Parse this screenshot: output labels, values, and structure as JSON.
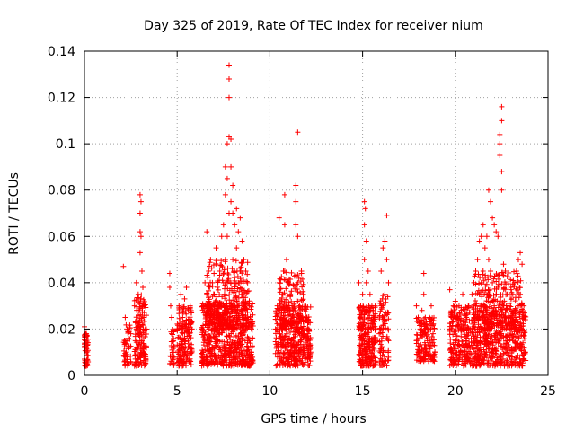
{
  "chart_data": {
    "type": "scatter",
    "title": "Day 325 of 2019, Rate Of TEC Index for receiver nium",
    "xlabel": "GPS time / hours",
    "ylabel": "ROTI / TECUs",
    "xlim": [
      0,
      25
    ],
    "ylim": [
      0,
      0.14
    ],
    "xticks": [
      0,
      5,
      10,
      15,
      20,
      25
    ],
    "yticks": [
      0,
      0.02,
      0.04,
      0.06,
      0.08,
      0.1,
      0.12,
      0.14
    ],
    "xtick_labels": [
      "0",
      "5",
      "10",
      "15",
      "20",
      "25"
    ],
    "ytick_labels": [
      "0",
      "0.02",
      "0.04",
      "0.06",
      "0.08",
      "0.1",
      "0.12",
      "0.14"
    ],
    "grid": true,
    "marker": "plus",
    "color": "#ff0000",
    "series": [
      {
        "name": "ROTI",
        "points": [
          [
            0.0,
            0.007
          ],
          [
            0.0,
            0.012
          ],
          [
            0.05,
            0.015
          ],
          [
            0.1,
            0.01
          ],
          [
            0.1,
            0.018
          ],
          [
            0.15,
            0.005
          ],
          [
            0.15,
            0.013
          ],
          [
            0.0,
            0.021
          ],
          [
            2.1,
            0.047
          ],
          [
            2.2,
            0.025
          ],
          [
            2.2,
            0.015
          ],
          [
            2.3,
            0.008
          ],
          [
            2.3,
            0.02
          ],
          [
            2.4,
            0.012
          ],
          [
            2.4,
            0.005
          ],
          [
            2.5,
            0.018
          ],
          [
            2.25,
            0.01
          ],
          [
            2.7,
            0.03
          ],
          [
            2.8,
            0.04
          ],
          [
            2.8,
            0.02
          ],
          [
            2.9,
            0.035
          ],
          [
            2.9,
            0.012
          ],
          [
            3.0,
            0.078
          ],
          [
            3.0,
            0.07
          ],
          [
            3.0,
            0.062
          ],
          [
            3.0,
            0.053
          ],
          [
            3.1,
            0.045
          ],
          [
            3.1,
            0.03
          ],
          [
            3.1,
            0.015
          ],
          [
            3.2,
            0.025
          ],
          [
            3.2,
            0.01
          ],
          [
            3.3,
            0.02
          ],
          [
            3.3,
            0.008
          ],
          [
            2.75,
            0.015
          ],
          [
            3.05,
            0.075
          ],
          [
            3.05,
            0.06
          ],
          [
            2.95,
            0.028
          ],
          [
            3.15,
            0.038
          ],
          [
            4.6,
            0.044
          ],
          [
            4.6,
            0.038
          ],
          [
            4.7,
            0.025
          ],
          [
            4.7,
            0.018
          ],
          [
            4.8,
            0.01
          ],
          [
            4.8,
            0.015
          ],
          [
            4.65,
            0.03
          ],
          [
            5.0,
            0.02
          ],
          [
            5.1,
            0.03
          ],
          [
            5.1,
            0.012
          ],
          [
            5.2,
            0.035
          ],
          [
            5.2,
            0.008
          ],
          [
            5.3,
            0.025
          ],
          [
            5.3,
            0.018
          ],
          [
            5.4,
            0.033
          ],
          [
            5.4,
            0.015
          ],
          [
            5.5,
            0.038
          ],
          [
            5.5,
            0.022
          ],
          [
            5.6,
            0.028
          ],
          [
            5.6,
            0.012
          ],
          [
            5.7,
            0.03
          ],
          [
            5.7,
            0.01
          ],
          [
            5.8,
            0.02
          ],
          [
            5.25,
            0.006
          ],
          [
            6.3,
            0.02
          ],
          [
            6.4,
            0.03
          ],
          [
            6.5,
            0.04
          ],
          [
            6.5,
            0.015
          ],
          [
            6.6,
            0.062
          ],
          [
            6.6,
            0.035
          ],
          [
            6.7,
            0.045
          ],
          [
            6.7,
            0.02
          ],
          [
            6.8,
            0.05
          ],
          [
            6.8,
            0.03
          ],
          [
            6.9,
            0.04
          ],
          [
            6.9,
            0.012
          ],
          [
            7.0,
            0.035
          ],
          [
            7.0,
            0.02
          ],
          [
            7.1,
            0.055
          ],
          [
            7.1,
            0.025
          ],
          [
            7.2,
            0.03
          ],
          [
            7.2,
            0.015
          ],
          [
            7.3,
            0.045
          ],
          [
            7.3,
            0.022
          ],
          [
            7.4,
            0.06
          ],
          [
            7.4,
            0.03
          ],
          [
            7.5,
            0.065
          ],
          [
            7.5,
            0.04
          ],
          [
            7.6,
            0.09
          ],
          [
            7.6,
            0.078
          ],
          [
            7.6,
            0.05
          ],
          [
            7.7,
            0.1
          ],
          [
            7.7,
            0.085
          ],
          [
            7.7,
            0.06
          ],
          [
            7.8,
            0.134
          ],
          [
            7.8,
            0.128
          ],
          [
            7.8,
            0.12
          ],
          [
            7.8,
            0.103
          ],
          [
            7.8,
            0.07
          ],
          [
            7.9,
            0.102
          ],
          [
            7.9,
            0.09
          ],
          [
            7.9,
            0.075
          ],
          [
            7.9,
            0.04
          ],
          [
            8.0,
            0.082
          ],
          [
            8.0,
            0.07
          ],
          [
            8.0,
            0.05
          ],
          [
            8.1,
            0.065
          ],
          [
            8.1,
            0.045
          ],
          [
            8.2,
            0.072
          ],
          [
            8.2,
            0.055
          ],
          [
            8.3,
            0.062
          ],
          [
            8.3,
            0.04
          ],
          [
            8.4,
            0.068
          ],
          [
            8.4,
            0.045
          ],
          [
            8.5,
            0.058
          ],
          [
            8.5,
            0.035
          ],
          [
            8.6,
            0.05
          ],
          [
            8.6,
            0.03
          ],
          [
            8.7,
            0.045
          ],
          [
            8.7,
            0.02
          ],
          [
            8.8,
            0.04
          ],
          [
            8.8,
            0.025
          ],
          [
            8.9,
            0.03
          ],
          [
            8.9,
            0.015
          ],
          [
            9.0,
            0.02
          ],
          [
            9.0,
            0.01
          ],
          [
            7.85,
            0.005
          ],
          [
            8.05,
            0.01
          ],
          [
            7.55,
            0.008
          ],
          [
            8.25,
            0.012
          ],
          [
            10.3,
            0.02
          ],
          [
            10.4,
            0.03
          ],
          [
            10.5,
            0.068
          ],
          [
            10.5,
            0.04
          ],
          [
            10.6,
            0.025
          ],
          [
            10.7,
            0.035
          ],
          [
            10.7,
            0.015
          ],
          [
            10.8,
            0.078
          ],
          [
            10.8,
            0.065
          ],
          [
            10.8,
            0.045
          ],
          [
            10.9,
            0.05
          ],
          [
            10.9,
            0.02
          ],
          [
            11.0,
            0.04
          ],
          [
            11.0,
            0.01
          ],
          [
            11.1,
            0.035
          ],
          [
            11.1,
            0.022
          ],
          [
            11.2,
            0.03
          ],
          [
            11.2,
            0.012
          ],
          [
            11.3,
            0.025
          ],
          [
            11.3,
            0.008
          ],
          [
            11.4,
            0.082
          ],
          [
            11.4,
            0.075
          ],
          [
            11.4,
            0.065
          ],
          [
            11.5,
            0.105
          ],
          [
            11.5,
            0.06
          ],
          [
            11.5,
            0.04
          ],
          [
            11.6,
            0.03
          ],
          [
            11.6,
            0.018
          ],
          [
            11.7,
            0.045
          ],
          [
            11.7,
            0.02
          ],
          [
            11.8,
            0.035
          ],
          [
            11.8,
            0.01
          ],
          [
            11.9,
            0.025
          ],
          [
            12.0,
            0.015
          ],
          [
            12.1,
            0.02
          ],
          [
            12.2,
            0.01
          ],
          [
            14.8,
            0.04
          ],
          [
            14.8,
            0.02
          ],
          [
            14.9,
            0.03
          ],
          [
            14.9,
            0.01
          ],
          [
            15.0,
            0.035
          ],
          [
            15.0,
            0.015
          ],
          [
            15.1,
            0.075
          ],
          [
            15.1,
            0.065
          ],
          [
            15.1,
            0.05
          ],
          [
            15.2,
            0.058
          ],
          [
            15.2,
            0.04
          ],
          [
            15.3,
            0.045
          ],
          [
            15.3,
            0.02
          ],
          [
            15.4,
            0.035
          ],
          [
            15.4,
            0.012
          ],
          [
            15.5,
            0.03
          ],
          [
            15.5,
            0.008
          ],
          [
            15.6,
            0.022
          ],
          [
            15.7,
            0.025
          ],
          [
            15.8,
            0.015
          ],
          [
            15.9,
            0.018
          ],
          [
            16.0,
            0.045
          ],
          [
            16.0,
            0.03
          ],
          [
            16.1,
            0.055
          ],
          [
            16.1,
            0.02
          ],
          [
            16.2,
            0.058
          ],
          [
            16.2,
            0.035
          ],
          [
            16.3,
            0.069
          ],
          [
            16.3,
            0.05
          ],
          [
            16.4,
            0.04
          ],
          [
            16.4,
            0.015
          ],
          [
            15.15,
            0.072
          ],
          [
            17.9,
            0.03
          ],
          [
            17.9,
            0.015
          ],
          [
            18.0,
            0.025
          ],
          [
            18.0,
            0.01
          ],
          [
            18.1,
            0.02
          ],
          [
            18.2,
            0.028
          ],
          [
            18.2,
            0.012
          ],
          [
            18.3,
            0.044
          ],
          [
            18.3,
            0.035
          ],
          [
            18.4,
            0.022
          ],
          [
            18.5,
            0.015
          ],
          [
            18.6,
            0.025
          ],
          [
            18.7,
            0.03
          ],
          [
            18.8,
            0.018
          ],
          [
            18.9,
            0.01
          ],
          [
            19.7,
            0.037
          ],
          [
            19.7,
            0.02
          ],
          [
            19.8,
            0.025
          ],
          [
            19.8,
            0.01
          ],
          [
            19.9,
            0.03
          ],
          [
            20.0,
            0.032
          ],
          [
            20.0,
            0.015
          ],
          [
            20.1,
            0.025
          ],
          [
            20.2,
            0.03
          ],
          [
            20.3,
            0.02
          ],
          [
            20.4,
            0.035
          ],
          [
            20.5,
            0.012
          ],
          [
            20.6,
            0.025
          ],
          [
            20.7,
            0.03
          ],
          [
            20.8,
            0.02
          ],
          [
            20.9,
            0.035
          ],
          [
            20.9,
            0.012
          ],
          [
            21.0,
            0.04
          ],
          [
            21.0,
            0.025
          ],
          [
            21.1,
            0.045
          ],
          [
            21.1,
            0.03
          ],
          [
            21.2,
            0.05
          ],
          [
            21.2,
            0.02
          ],
          [
            21.3,
            0.058
          ],
          [
            21.3,
            0.035
          ],
          [
            21.4,
            0.06
          ],
          [
            21.4,
            0.04
          ],
          [
            21.5,
            0.065
          ],
          [
            21.5,
            0.045
          ],
          [
            21.6,
            0.055
          ],
          [
            21.6,
            0.03
          ],
          [
            21.7,
            0.06
          ],
          [
            21.7,
            0.035
          ],
          [
            21.8,
            0.08
          ],
          [
            21.8,
            0.05
          ],
          [
            21.9,
            0.075
          ],
          [
            21.9,
            0.045
          ],
          [
            22.0,
            0.068
          ],
          [
            22.0,
            0.04
          ],
          [
            22.1,
            0.065
          ],
          [
            22.1,
            0.03
          ],
          [
            22.2,
            0.062
          ],
          [
            22.2,
            0.035
          ],
          [
            22.3,
            0.06
          ],
          [
            22.3,
            0.038
          ],
          [
            22.4,
            0.104
          ],
          [
            22.4,
            0.1
          ],
          [
            22.4,
            0.095
          ],
          [
            22.5,
            0.116
          ],
          [
            22.5,
            0.11
          ],
          [
            22.5,
            0.088
          ],
          [
            22.5,
            0.08
          ],
          [
            22.6,
            0.048
          ],
          [
            22.6,
            0.03
          ],
          [
            22.7,
            0.045
          ],
          [
            22.7,
            0.025
          ],
          [
            22.8,
            0.035
          ],
          [
            22.8,
            0.015
          ],
          [
            22.9,
            0.03
          ],
          [
            22.9,
            0.02
          ],
          [
            23.0,
            0.038
          ],
          [
            23.0,
            0.025
          ],
          [
            23.1,
            0.035
          ],
          [
            23.1,
            0.015
          ],
          [
            23.2,
            0.04
          ],
          [
            23.2,
            0.02
          ],
          [
            23.3,
            0.045
          ],
          [
            23.3,
            0.025
          ],
          [
            23.4,
            0.05
          ],
          [
            23.4,
            0.03
          ],
          [
            23.5,
            0.053
          ],
          [
            23.5,
            0.035
          ],
          [
            23.6,
            0.048
          ],
          [
            23.6,
            0.02
          ],
          [
            23.7,
            0.03
          ],
          [
            23.7,
            0.01
          ],
          [
            22.65,
            0.005
          ],
          [
            21.25,
            0.008
          ],
          [
            20.55,
            0.006
          ]
        ],
        "dense_regions": [
          [
            0.0,
            0.2,
            0.004,
            0.018,
            40
          ],
          [
            2.1,
            2.5,
            0.004,
            0.022,
            40
          ],
          [
            2.7,
            3.35,
            0.004,
            0.035,
            140
          ],
          [
            4.6,
            4.85,
            0.004,
            0.02,
            30
          ],
          [
            5.0,
            5.8,
            0.004,
            0.03,
            160
          ],
          [
            6.3,
            9.1,
            0.004,
            0.032,
            600
          ],
          [
            6.6,
            8.9,
            0.02,
            0.05,
            260
          ],
          [
            10.3,
            12.2,
            0.004,
            0.03,
            380
          ],
          [
            10.5,
            11.8,
            0.02,
            0.045,
            120
          ],
          [
            14.8,
            15.7,
            0.004,
            0.03,
            240
          ],
          [
            15.9,
            16.4,
            0.004,
            0.035,
            80
          ],
          [
            17.9,
            18.9,
            0.006,
            0.025,
            150
          ],
          [
            19.7,
            23.8,
            0.004,
            0.03,
            700
          ],
          [
            21.0,
            23.6,
            0.02,
            0.045,
            220
          ]
        ]
      }
    ]
  }
}
